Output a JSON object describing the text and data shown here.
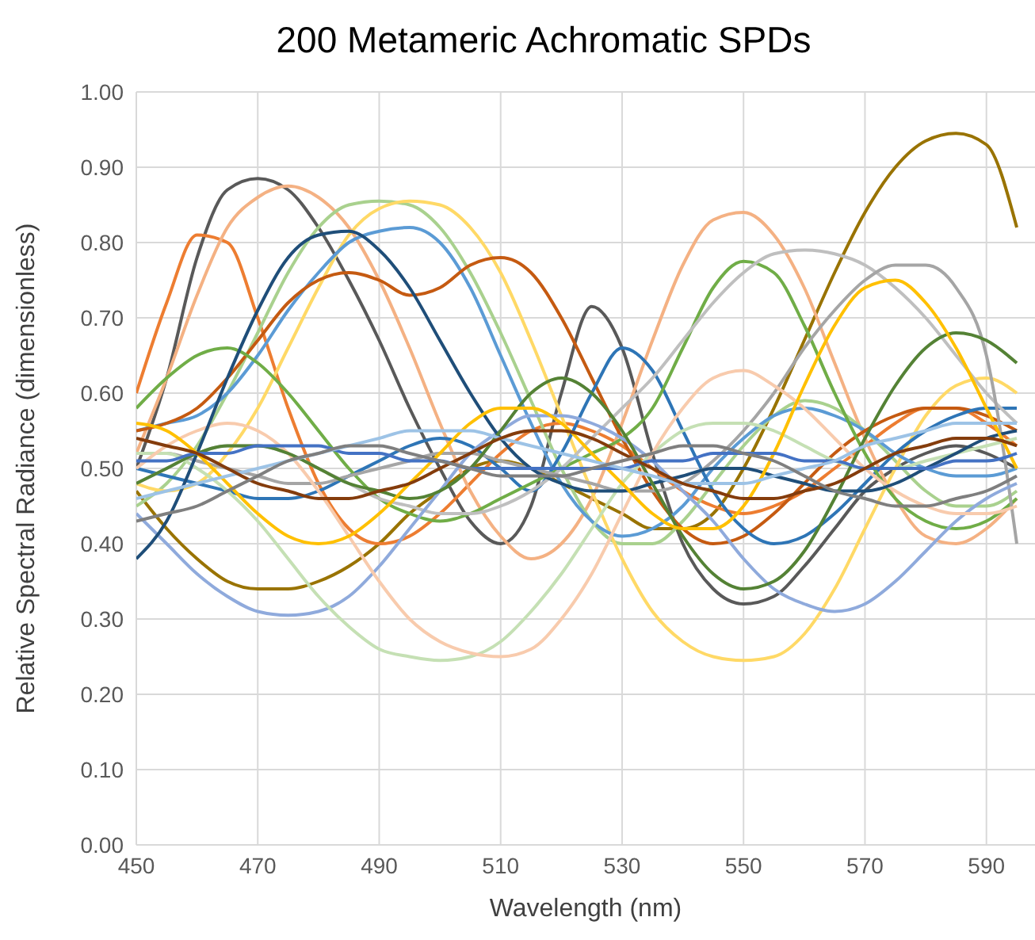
{
  "chart_data": {
    "type": "line",
    "title": "200 Metameric Achromatic SPDs",
    "xlabel": "Wavelength (nm)",
    "ylabel": "Relative Spectral Radiance (dimensionless)",
    "x": [
      450,
      455,
      460,
      465,
      470,
      475,
      480,
      485,
      490,
      495,
      500,
      505,
      510,
      515,
      520,
      525,
      530,
      535,
      540,
      545,
      550,
      555,
      560,
      565,
      570,
      575,
      580,
      585,
      590,
      595
    ],
    "xlim": [
      450,
      598
    ],
    "xticks": [
      450,
      470,
      490,
      510,
      530,
      550,
      570,
      590
    ],
    "ylim": [
      0,
      1
    ],
    "yticks": [
      {
        "value": 0,
        "label": "0.00"
      },
      {
        "value": 0.1,
        "label": "0.10"
      },
      {
        "value": 0.2,
        "label": "0.20"
      },
      {
        "value": 0.3,
        "label": "0.30"
      },
      {
        "value": 0.4,
        "label": "0.40"
      },
      {
        "value": 0.5,
        "label": "0.50"
      },
      {
        "value": 0.6,
        "label": "0.60"
      },
      {
        "value": 0.7,
        "label": "0.70"
      },
      {
        "value": 0.8,
        "label": "0.80"
      },
      {
        "value": 0.9,
        "label": "0.90"
      },
      {
        "value": 1,
        "label": "1.00"
      }
    ],
    "grid": true,
    "marker": "none",
    "line_style": "solid",
    "series": [
      {
        "color": "#595959",
        "values": [
          0.5,
          0.62,
          0.78,
          0.87,
          0.885,
          0.87,
          0.82,
          0.75,
          0.67,
          0.58,
          0.5,
          0.43,
          0.4,
          0.45,
          0.6,
          0.715,
          0.66,
          0.52,
          0.4,
          0.34,
          0.32,
          0.33,
          0.37,
          0.42,
          0.47,
          0.5,
          0.52,
          0.53,
          0.52,
          0.5
        ]
      },
      {
        "color": "#997300",
        "values": [
          0.47,
          0.42,
          0.38,
          0.35,
          0.34,
          0.34,
          0.35,
          0.37,
          0.4,
          0.44,
          0.47,
          0.5,
          0.51,
          0.5,
          0.48,
          0.46,
          0.44,
          0.42,
          0.42,
          0.44,
          0.5,
          0.58,
          0.67,
          0.76,
          0.84,
          0.9,
          0.935,
          0.945,
          0.93,
          0.82
        ]
      },
      {
        "color": "#ed7d31",
        "values": [
          0.6,
          0.72,
          0.81,
          0.8,
          0.7,
          0.58,
          0.48,
          0.42,
          0.4,
          0.41,
          0.44,
          0.48,
          0.52,
          0.55,
          0.56,
          0.55,
          0.53,
          0.5,
          0.47,
          0.45,
          0.44,
          0.45,
          0.47,
          0.5,
          0.53,
          0.56,
          0.58,
          0.58,
          0.56,
          0.53
        ]
      },
      {
        "color": "#f4b183",
        "values": [
          0.52,
          0.62,
          0.73,
          0.82,
          0.86,
          0.875,
          0.86,
          0.82,
          0.75,
          0.66,
          0.56,
          0.47,
          0.41,
          0.38,
          0.4,
          0.46,
          0.56,
          0.67,
          0.77,
          0.83,
          0.84,
          0.81,
          0.74,
          0.64,
          0.54,
          0.46,
          0.41,
          0.4,
          0.42,
          0.46
        ]
      },
      {
        "color": "#a9d18e",
        "values": [
          0.45,
          0.48,
          0.53,
          0.6,
          0.68,
          0.76,
          0.82,
          0.85,
          0.855,
          0.85,
          0.82,
          0.76,
          0.68,
          0.59,
          0.5,
          0.43,
          0.4,
          0.4,
          0.43,
          0.48,
          0.53,
          0.57,
          0.59,
          0.58,
          0.55,
          0.51,
          0.47,
          0.45,
          0.45,
          0.47
        ]
      },
      {
        "color": "#ffd966",
        "values": [
          0.48,
          0.47,
          0.48,
          0.52,
          0.58,
          0.66,
          0.74,
          0.81,
          0.845,
          0.855,
          0.85,
          0.82,
          0.76,
          0.67,
          0.57,
          0.47,
          0.38,
          0.31,
          0.27,
          0.25,
          0.245,
          0.25,
          0.28,
          0.34,
          0.42,
          0.5,
          0.57,
          0.61,
          0.62,
          0.6
        ]
      },
      {
        "color": "#5b9bd5",
        "values": [
          0.55,
          0.56,
          0.57,
          0.6,
          0.65,
          0.71,
          0.76,
          0.8,
          0.815,
          0.82,
          0.8,
          0.74,
          0.65,
          0.56,
          0.48,
          0.43,
          0.41,
          0.42,
          0.45,
          0.5,
          0.54,
          0.57,
          0.58,
          0.57,
          0.55,
          0.52,
          0.5,
          0.49,
          0.49,
          0.5
        ]
      },
      {
        "color": "#c55a11",
        "values": [
          0.55,
          0.56,
          0.58,
          0.62,
          0.67,
          0.72,
          0.75,
          0.76,
          0.75,
          0.73,
          0.74,
          0.77,
          0.78,
          0.76,
          0.7,
          0.62,
          0.54,
          0.47,
          0.42,
          0.4,
          0.41,
          0.44,
          0.48,
          0.52,
          0.55,
          0.57,
          0.58,
          0.58,
          0.57,
          0.55
        ]
      },
      {
        "color": "#2e75b6",
        "values": [
          0.5,
          0.49,
          0.48,
          0.47,
          0.46,
          0.46,
          0.47,
          0.49,
          0.51,
          0.53,
          0.54,
          0.53,
          0.5,
          0.47,
          0.52,
          0.6,
          0.66,
          0.63,
          0.55,
          0.47,
          0.42,
          0.4,
          0.41,
          0.44,
          0.48,
          0.52,
          0.55,
          0.57,
          0.58,
          0.58
        ]
      },
      {
        "color": "#70ad47",
        "values": [
          0.58,
          0.62,
          0.65,
          0.66,
          0.64,
          0.6,
          0.55,
          0.5,
          0.46,
          0.44,
          0.43,
          0.44,
          0.46,
          0.48,
          0.5,
          0.52,
          0.54,
          0.58,
          0.66,
          0.74,
          0.775,
          0.76,
          0.69,
          0.6,
          0.52,
          0.46,
          0.43,
          0.42,
          0.43,
          0.46
        ]
      },
      {
        "color": "#bfbfbf",
        "values": [
          0.48,
          0.5,
          0.52,
          0.53,
          0.53,
          0.52,
          0.5,
          0.48,
          0.46,
          0.45,
          0.44,
          0.44,
          0.45,
          0.47,
          0.5,
          0.54,
          0.58,
          0.62,
          0.67,
          0.72,
          0.76,
          0.785,
          0.79,
          0.785,
          0.77,
          0.74,
          0.7,
          0.65,
          0.6,
          0.56
        ]
      },
      {
        "color": "#a5a5a5",
        "values": [
          0.52,
          0.52,
          0.51,
          0.5,
          0.49,
          0.48,
          0.48,
          0.49,
          0.5,
          0.51,
          0.52,
          0.52,
          0.51,
          0.5,
          0.49,
          0.48,
          0.47,
          0.47,
          0.48,
          0.51,
          0.55,
          0.6,
          0.66,
          0.71,
          0.75,
          0.77,
          0.77,
          0.74,
          0.65,
          0.4
        ]
      },
      {
        "color": "#8faadc",
        "values": [
          0.44,
          0.4,
          0.36,
          0.33,
          0.31,
          0.305,
          0.31,
          0.33,
          0.37,
          0.42,
          0.47,
          0.52,
          0.55,
          0.57,
          0.57,
          0.56,
          0.54,
          0.51,
          0.47,
          0.43,
          0.38,
          0.34,
          0.32,
          0.31,
          0.32,
          0.35,
          0.39,
          0.43,
          0.46,
          0.48
        ]
      },
      {
        "color": "#c5e0b4",
        "values": [
          0.52,
          0.52,
          0.5,
          0.47,
          0.43,
          0.38,
          0.33,
          0.29,
          0.26,
          0.25,
          0.245,
          0.25,
          0.27,
          0.31,
          0.36,
          0.42,
          0.48,
          0.52,
          0.55,
          0.56,
          0.56,
          0.55,
          0.53,
          0.51,
          0.5,
          0.5,
          0.51,
          0.52,
          0.53,
          0.54
        ]
      },
      {
        "color": "#f8cbad",
        "values": [
          0.5,
          0.53,
          0.55,
          0.56,
          0.55,
          0.52,
          0.47,
          0.41,
          0.35,
          0.3,
          0.27,
          0.255,
          0.25,
          0.26,
          0.3,
          0.36,
          0.44,
          0.52,
          0.58,
          0.62,
          0.63,
          0.61,
          0.58,
          0.54,
          0.5,
          0.47,
          0.45,
          0.44,
          0.44,
          0.45
        ]
      },
      {
        "color": "#1f4e79",
        "values": [
          0.38,
          0.43,
          0.52,
          0.62,
          0.71,
          0.78,
          0.81,
          0.815,
          0.79,
          0.74,
          0.67,
          0.6,
          0.54,
          0.5,
          0.48,
          0.47,
          0.47,
          0.48,
          0.49,
          0.5,
          0.5,
          0.49,
          0.48,
          0.47,
          0.47,
          0.48,
          0.5,
          0.52,
          0.54,
          0.55
        ]
      },
      {
        "color": "#548235",
        "values": [
          0.48,
          0.5,
          0.52,
          0.53,
          0.53,
          0.52,
          0.5,
          0.48,
          0.47,
          0.46,
          0.47,
          0.5,
          0.55,
          0.6,
          0.62,
          0.6,
          0.55,
          0.48,
          0.41,
          0.36,
          0.34,
          0.35,
          0.39,
          0.46,
          0.54,
          0.61,
          0.66,
          0.68,
          0.67,
          0.64
        ]
      },
      {
        "color": "#ffc000",
        "values": [
          0.56,
          0.55,
          0.52,
          0.48,
          0.44,
          0.41,
          0.4,
          0.41,
          0.44,
          0.48,
          0.52,
          0.56,
          0.58,
          0.58,
          0.56,
          0.52,
          0.48,
          0.44,
          0.42,
          0.42,
          0.45,
          0.52,
          0.61,
          0.69,
          0.74,
          0.75,
          0.72,
          0.66,
          0.58,
          0.5
        ]
      },
      {
        "color": "#4472c4",
        "values": [
          0.51,
          0.51,
          0.52,
          0.52,
          0.53,
          0.53,
          0.53,
          0.52,
          0.52,
          0.51,
          0.51,
          0.5,
          0.5,
          0.5,
          0.5,
          0.5,
          0.5,
          0.51,
          0.51,
          0.52,
          0.52,
          0.52,
          0.51,
          0.51,
          0.5,
          0.5,
          0.5,
          0.51,
          0.51,
          0.52
        ]
      },
      {
        "color": "#9dc3e6",
        "values": [
          0.46,
          0.47,
          0.48,
          0.49,
          0.5,
          0.51,
          0.52,
          0.53,
          0.54,
          0.55,
          0.55,
          0.55,
          0.54,
          0.53,
          0.52,
          0.51,
          0.5,
          0.49,
          0.48,
          0.48,
          0.48,
          0.49,
          0.5,
          0.51,
          0.53,
          0.54,
          0.55,
          0.56,
          0.56,
          0.56
        ]
      },
      {
        "color": "#843c0c",
        "values": [
          0.54,
          0.53,
          0.52,
          0.5,
          0.48,
          0.47,
          0.46,
          0.46,
          0.47,
          0.48,
          0.5,
          0.52,
          0.54,
          0.55,
          0.55,
          0.54,
          0.52,
          0.5,
          0.48,
          0.47,
          0.46,
          0.46,
          0.47,
          0.48,
          0.5,
          0.52,
          0.53,
          0.54,
          0.54,
          0.53
        ]
      },
      {
        "color": "#7f7f7f",
        "values": [
          0.43,
          0.44,
          0.45,
          0.47,
          0.49,
          0.51,
          0.52,
          0.53,
          0.53,
          0.52,
          0.51,
          0.5,
          0.49,
          0.49,
          0.49,
          0.5,
          0.51,
          0.52,
          0.53,
          0.53,
          0.52,
          0.51,
          0.49,
          0.47,
          0.46,
          0.45,
          0.45,
          0.46,
          0.47,
          0.49
        ]
      }
    ]
  }
}
